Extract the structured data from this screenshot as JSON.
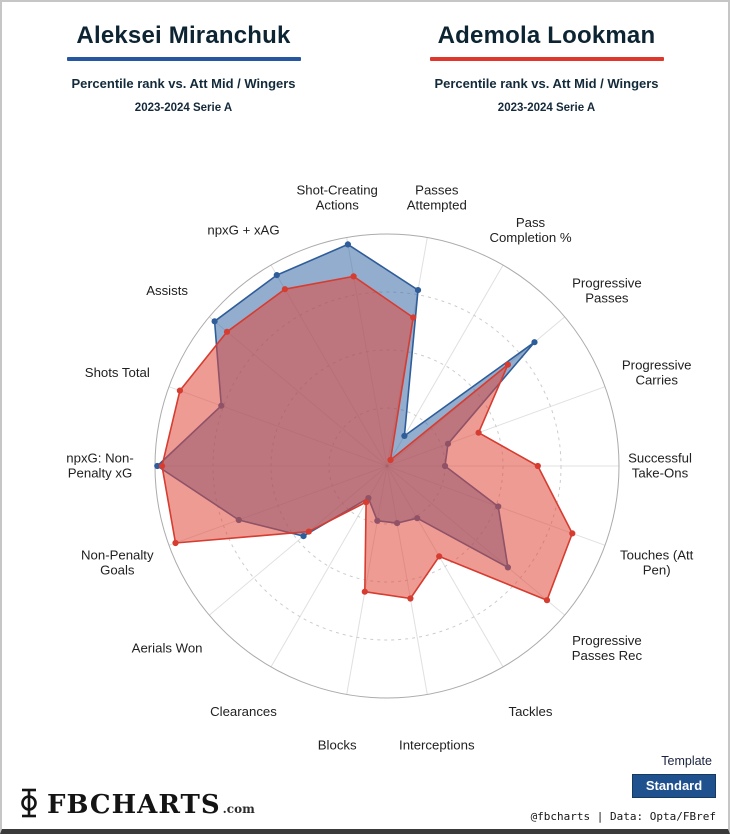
{
  "header": {
    "left": {
      "name": "Aleksei Miranchuk",
      "subtitle": "Percentile rank vs. Att Mid / Wingers",
      "season": "2023-2024 Serie A",
      "accent": "#2457a0"
    },
    "right": {
      "name": "Ademola Lookman",
      "subtitle": "Percentile rank vs. Att Mid / Wingers",
      "season": "2023-2024 Serie A",
      "accent": "#e0372c"
    }
  },
  "chart_data": {
    "type": "radar",
    "scale": "percentile",
    "value_range": [
      0,
      100
    ],
    "grid_rings_pct": [
      25,
      50,
      75,
      100
    ],
    "start_angle_deg": 80,
    "step_deg": -20,
    "legend_position": "header-underlines",
    "categories": [
      "Passes Attempted",
      "Pass Completion %",
      "Progressive Passes",
      "Progressive Carries",
      "Successful Take-Ons",
      "Touches (Att Pen)",
      "Progressive Passes Rec",
      "Tackles",
      "Interceptions",
      "Blocks",
      "Clearances",
      "Aerials Won",
      "Non-Penalty Goals",
      "npxG: Non-Penalty xG",
      "Shots Total",
      "Assists",
      "npxG + xAG",
      "Shot-Creating Actions"
    ],
    "category_label_lines": [
      [
        "Passes",
        "Attempted"
      ],
      [
        "Pass",
        "Completion %"
      ],
      [
        "Progressive",
        "Passes"
      ],
      [
        "Progressive",
        "Carries"
      ],
      [
        "Successful",
        "Take-Ons"
      ],
      [
        "Touches (Att",
        "Pen)"
      ],
      [
        "Progressive",
        "Passes Rec"
      ],
      [
        "Tackles"
      ],
      [
        "Interceptions"
      ],
      [
        "Blocks"
      ],
      [
        "Clearances"
      ],
      [
        "Aerials Won"
      ],
      [
        "Non-Penalty",
        "Goals"
      ],
      [
        "npxG: Non-",
        "Penalty xG"
      ],
      [
        "Shots Total"
      ],
      [
        "Assists"
      ],
      [
        "npxG + xAG"
      ],
      [
        "Shot-Creating",
        "Actions"
      ]
    ],
    "series": [
      {
        "name": "Aleksei Miranchuk",
        "color": "#3a6aa5",
        "stroke": "#2f5d99",
        "fill_opacity": 0.55,
        "values": [
          77,
          15,
          83,
          28,
          25,
          51,
          68,
          26,
          25,
          24,
          16,
          47,
          68,
          99,
          76,
          97,
          95,
          97
        ]
      },
      {
        "name": "Ademola Lookman",
        "color": "#e0493d",
        "stroke": "#d63c30",
        "fill_opacity": 0.55,
        "values": [
          65,
          3,
          68,
          42,
          65,
          85,
          90,
          45,
          58,
          55,
          18,
          44,
          97,
          97,
          95,
          90,
          88,
          83
        ]
      }
    ]
  },
  "footer": {
    "template_label": "Template",
    "template_value": "Standard",
    "brand": "FBCHARTS",
    "brand_suffix": ".com",
    "credit": "@fbcharts | Data: Opta/FBref"
  }
}
